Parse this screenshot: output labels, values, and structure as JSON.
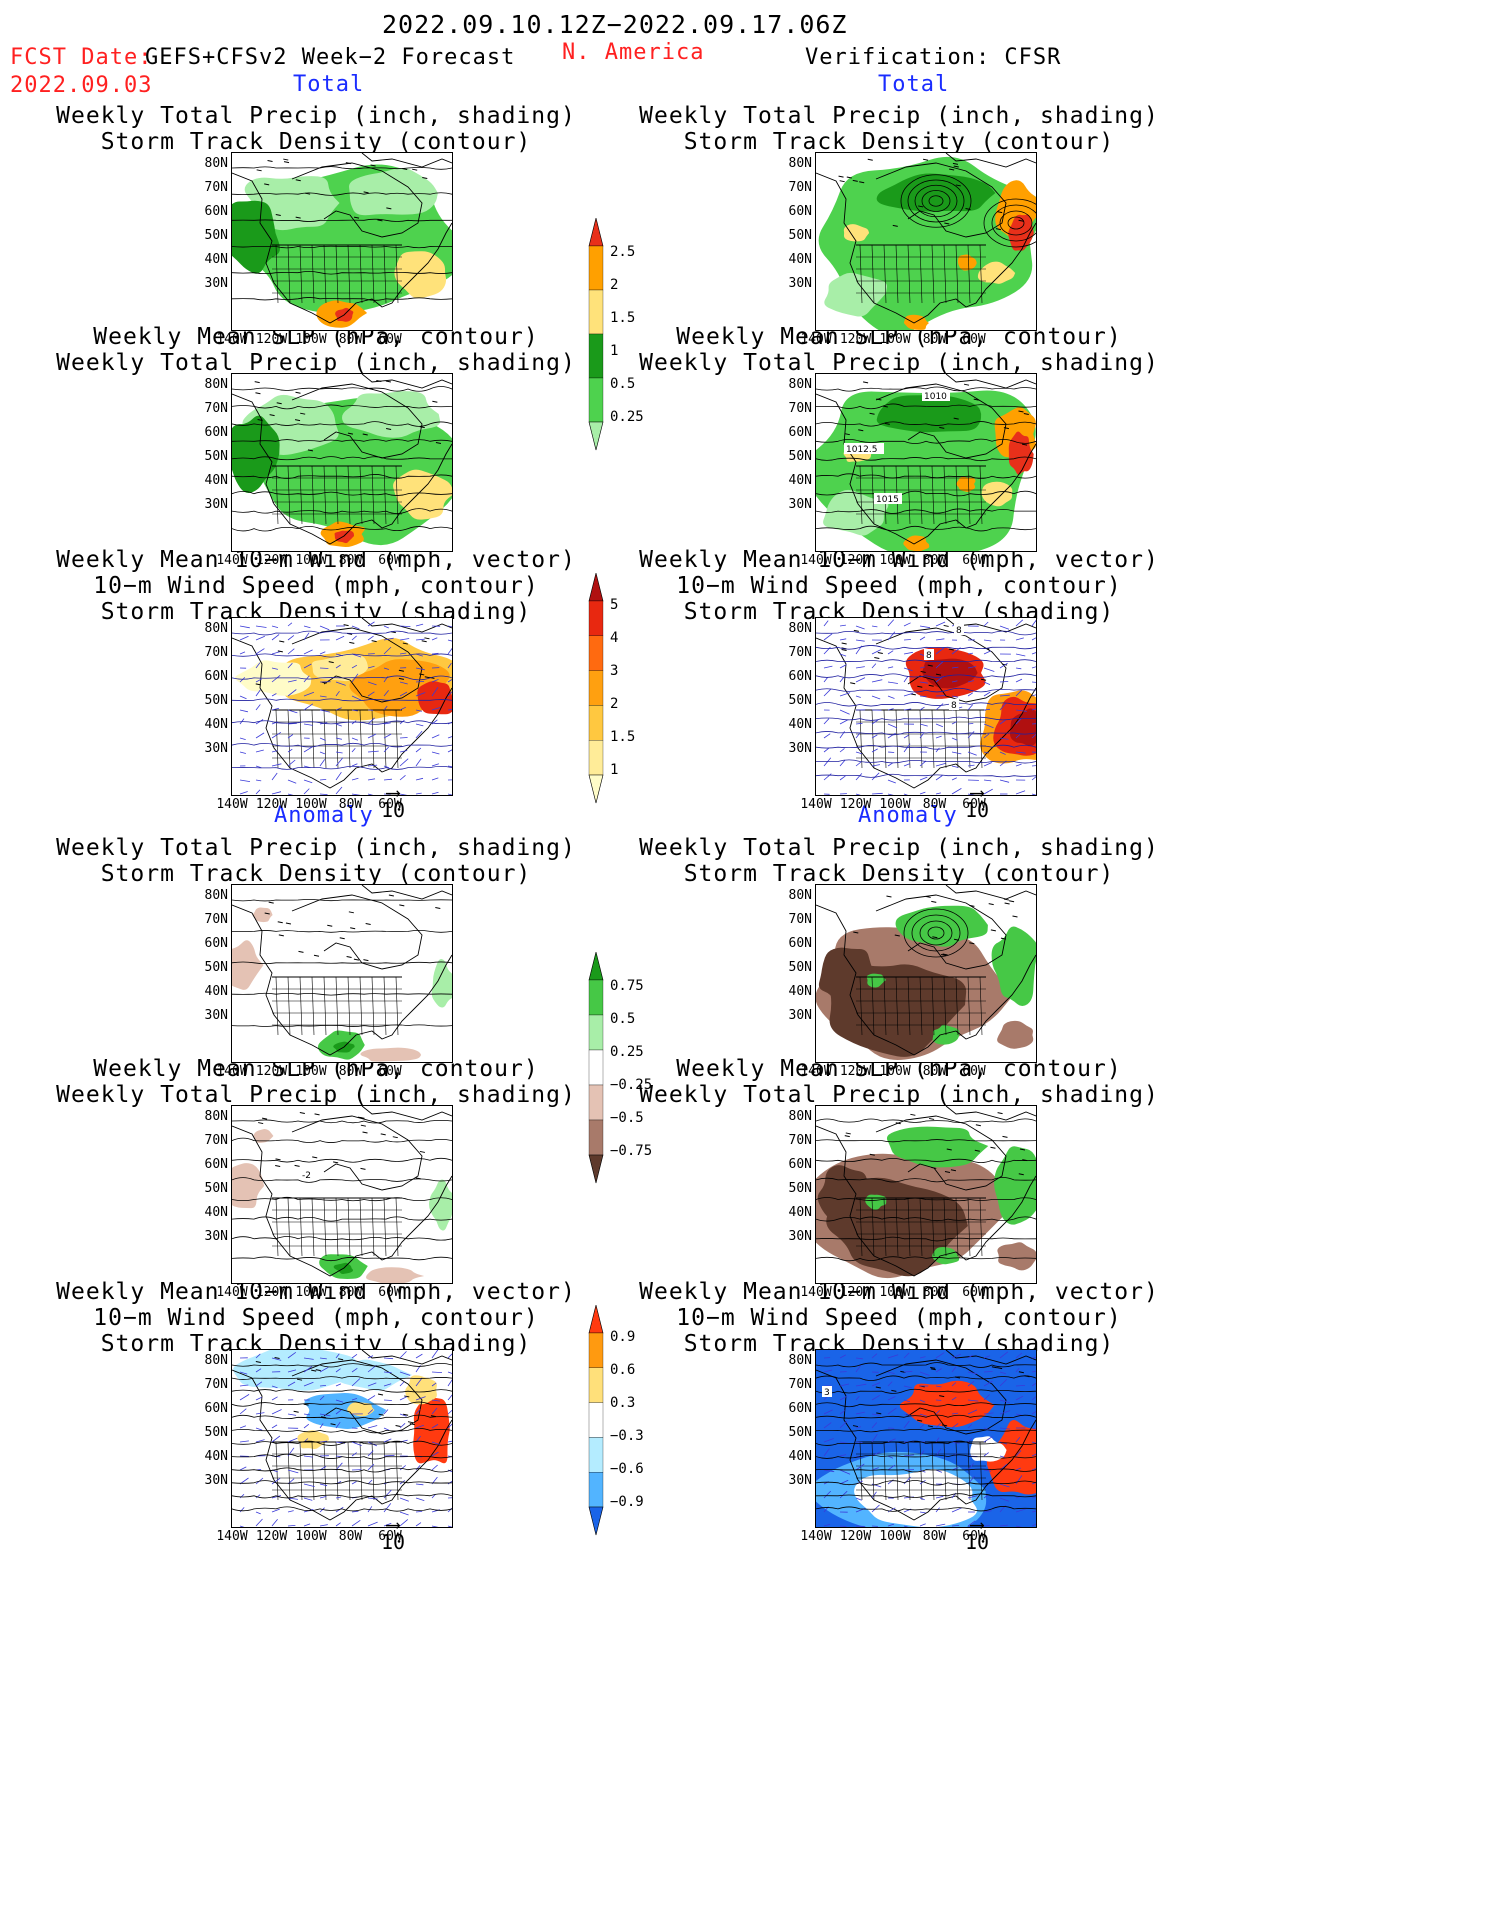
{
  "header": {
    "date_range": "2022.09.10.12Z−2022.09.17.06Z",
    "fcst_date_label": "FCST Date:",
    "fcst_date": "2022.09.03",
    "forecast_label": "GEFS+CFSv2 Week−2 Forecast",
    "region": "N. America",
    "verification": "Verification: CFSR"
  },
  "sections": {
    "total": "Total",
    "anomaly": "Anomaly"
  },
  "titles": {
    "precip_track": [
      "Weekly Total Precip (inch, shading)",
      "Storm Track Density (contour)"
    ],
    "slp_precip": [
      "Weekly Mean SLP (hPa, contour)",
      "Weekly Total Precip (inch, shading)"
    ],
    "wind_track": [
      "Weekly Mean 10−m Wind (mph, vector)",
      "10−m Wind Speed (mph, contour)",
      "Storm Track Density (shading)"
    ]
  },
  "axes": {
    "lat_ticks": [
      "80N",
      "70N",
      "60N",
      "50N",
      "40N",
      "30N"
    ],
    "lon_ticks": [
      "140W",
      "120W",
      "100W",
      "80W",
      "60W"
    ]
  },
  "contour_labels": {
    "cfsr_slp_total": [
      "1010",
      "1012.5",
      "1015"
    ],
    "cfsr_wind_total": [
      "8",
      "8",
      "8"
    ],
    "gefs_slp_anom": [
      "-2"
    ],
    "cfsr_wind_anom": [
      "3"
    ]
  },
  "vector_reference": "10",
  "colorbars": {
    "precip_total": {
      "labels": [
        "2.5",
        "2",
        "1.5",
        "1",
        "0.5",
        "0.25"
      ],
      "colors": [
        "#e8301a",
        "#ffa000",
        "#ffe27a",
        "#1a9a1a",
        "#4ed24e",
        "#a8eea8"
      ]
    },
    "track_total": {
      "labels": [
        "5",
        "4",
        "3",
        "2",
        "1.5",
        "1"
      ],
      "colors": [
        "#b01010",
        "#e82810",
        "#ff6a10",
        "#ffa010",
        "#ffc840",
        "#ffec98",
        "#fffcc8"
      ]
    },
    "precip_anom": {
      "labels": [
        "0.75",
        "0.5",
        "0.25",
        "−0.25",
        "−0.5",
        "−0.75"
      ],
      "colors": [
        "#1a9a1a",
        "#46c846",
        "#a8eea8",
        "#ffffff",
        "#e4c2b4",
        "#a87a6a",
        "#5e3a2c"
      ]
    },
    "track_anom": {
      "labels": [
        "0.9",
        "0.6",
        "0.3",
        "−0.3",
        "−0.6",
        "−0.9"
      ],
      "colors": [
        "#ff3a10",
        "#ff9a10",
        "#ffe07a",
        "#ffffff",
        "#b4ecff",
        "#52b4ff",
        "#1a64e8"
      ]
    }
  }
}
